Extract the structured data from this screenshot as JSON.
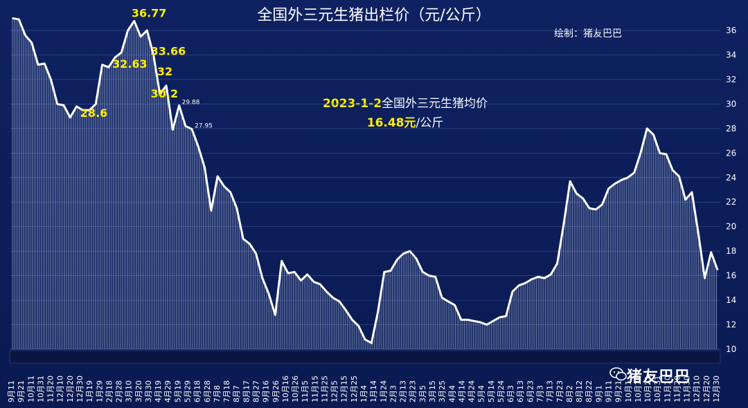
{
  "chart_data": {
    "type": "area",
    "title": "全国外三元生猪出栏价（元/公斤）",
    "credit": "绘制：猪友巴巴",
    "watermark": "猪友巴巴",
    "ylim": [
      10,
      36
    ],
    "yticks": [
      10,
      12,
      14,
      16,
      18,
      20,
      22,
      24,
      26,
      28,
      30,
      32,
      34,
      36
    ],
    "grid": true,
    "x_tick_labels": [
      "9月11",
      "9月21",
      "10月11",
      "10月31",
      "11月20",
      "12月10",
      "12月20",
      "12月30",
      "1月19",
      "1月29",
      "2月18",
      "2月28",
      "3月10",
      "3月20",
      "3月30",
      "4月19",
      "4月29",
      "5月19",
      "5月29",
      "6月18",
      "6月28",
      "7月8",
      "7月18",
      "8月7",
      "8月17",
      "8月27",
      "9月16",
      "9月26",
      "10月16",
      "10月26",
      "11月5",
      "11月15",
      "11月25",
      "12月5",
      "12月15",
      "12月25",
      "1月4",
      "1月14",
      "1月24",
      "2月3",
      "2月13",
      "2月23",
      "3月5",
      "3月15",
      "3月25",
      "4月4",
      "4月14",
      "4月24",
      "5月4",
      "5月14",
      "5月24",
      "6月3",
      "6月13",
      "6月23",
      "7月3",
      "7月13",
      "7月23",
      "8月2",
      "8月12",
      "8月22",
      "9月1",
      "9月11",
      "9月21",
      "10月1",
      "10月11",
      "10月21",
      "10月31",
      "11月10",
      "11月20",
      "11月30",
      "12月10",
      "12月20",
      "12月30"
    ],
    "series": [
      {
        "values": [
          37.0,
          36.9,
          35.6,
          35.0,
          33.2,
          33.3,
          32.0,
          30.0,
          29.9,
          28.9,
          29.8,
          29.5,
          29.5,
          30.0,
          33.2,
          33.0,
          33.8,
          34.2,
          36.0,
          36.77,
          35.5,
          36.0,
          34.0,
          30.8,
          31.5,
          27.9,
          29.88,
          28.2,
          27.95,
          26.5,
          24.8,
          21.3,
          24.1,
          23.3,
          22.8,
          21.5,
          19.0,
          18.6,
          17.8,
          15.8,
          14.5,
          12.8,
          17.2,
          16.2,
          16.3,
          15.6,
          16.1,
          15.5,
          15.3,
          14.7,
          14.2,
          13.9,
          13.2,
          12.4,
          11.9,
          10.8,
          10.5,
          13.0,
          16.3,
          16.4,
          17.3,
          17.8,
          18.0,
          17.4,
          16.3,
          16.0,
          15.9,
          14.2,
          13.9,
          13.6,
          12.4,
          12.4,
          12.3,
          12.2,
          12.0,
          12.3,
          12.6,
          12.7,
          14.7,
          15.2,
          15.4,
          15.7,
          15.9,
          15.8,
          16.1,
          17.0,
          20.2,
          23.7,
          22.7,
          22.3,
          21.5,
          21.4,
          21.8,
          23.1,
          23.5,
          23.8,
          24.0,
          24.4,
          26.0,
          28.0,
          27.5,
          26.0,
          25.9,
          24.6,
          24.1,
          22.2,
          22.8,
          19.5,
          15.8,
          17.9,
          16.48
        ]
      }
    ],
    "annotations": [
      {
        "x_index": 19,
        "value": 36.77,
        "label": "36.77",
        "style": "yellow"
      },
      {
        "x_index": 22,
        "value": 33.66,
        "label": "33.66",
        "style": "yellow"
      },
      {
        "x_index": 16,
        "value": 32.63,
        "label": "32.63",
        "style": "yellow"
      },
      {
        "x_index": 23,
        "value": 32,
        "label": "32",
        "style": "yellow"
      },
      {
        "x_index": 11,
        "value": 28.6,
        "label": "28.6",
        "style": "yellow"
      },
      {
        "x_index": 22,
        "value": 30.2,
        "label": "30.2",
        "style": "yellow"
      },
      {
        "x_index": 26,
        "value": 29.88,
        "label": "29.88",
        "style": "small"
      },
      {
        "x_index": 28,
        "value": 27.95,
        "label": "27.95",
        "style": "small"
      }
    ],
    "note": {
      "line1_date": "2023-1-2",
      "line1_text": "全国外三元生猪均价",
      "line2_value": "16.48元",
      "line2_unit": "/公斤"
    },
    "colors": {
      "background": "#0e2160",
      "line": "#ffffff",
      "annotation": "#ffee00"
    }
  }
}
